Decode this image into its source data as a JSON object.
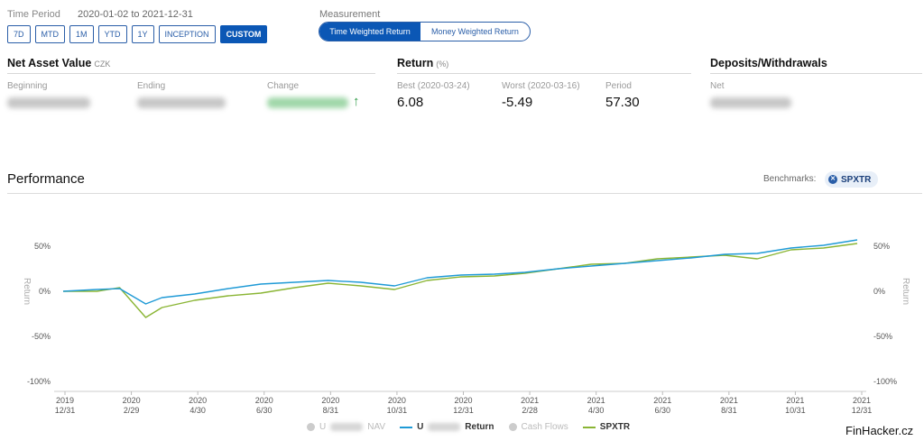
{
  "time_period": {
    "label": "Time Period",
    "range": "2020-01-02 to 2021-12-31",
    "buttons": [
      "7D",
      "MTD",
      "1M",
      "YTD",
      "1Y",
      "INCEPTION",
      "CUSTOM"
    ],
    "active": "CUSTOM"
  },
  "measurement": {
    "label": "Measurement",
    "options": [
      "Time Weighted Return",
      "Money Weighted Return"
    ],
    "active": "Time Weighted Return"
  },
  "nav": {
    "title": "Net Asset Value",
    "unit": "CZK",
    "beginning_label": "Beginning",
    "ending_label": "Ending",
    "change_label": "Change"
  },
  "return": {
    "title": "Return",
    "unit": "(%)",
    "best_label": "Best (2020-03-24)",
    "best_value": "6.08",
    "worst_label": "Worst (2020-03-16)",
    "worst_value": "-5.49",
    "period_label": "Period",
    "period_value": "57.30"
  },
  "deposits": {
    "title": "Deposits/Withdrawals",
    "net_label": "Net"
  },
  "performance": {
    "title": "Performance",
    "benchmarks_label": "Benchmarks:",
    "benchmark": "SPXTR"
  },
  "chart_data": {
    "type": "line",
    "y_ticks": [
      "50%",
      "0%",
      "-50%",
      "-100%"
    ],
    "ylim": [
      -100,
      50
    ],
    "ylabel": "Return",
    "grid": false,
    "x_ticks": [
      {
        "year": "2019",
        "date": "12/31"
      },
      {
        "year": "2020",
        "date": "2/29"
      },
      {
        "year": "2020",
        "date": "4/30"
      },
      {
        "year": "2020",
        "date": "6/30"
      },
      {
        "year": "2020",
        "date": "8/31"
      },
      {
        "year": "2020",
        "date": "10/31"
      },
      {
        "year": "2020",
        "date": "12/31"
      },
      {
        "year": "2021",
        "date": "2/28"
      },
      {
        "year": "2021",
        "date": "4/30"
      },
      {
        "year": "2021",
        "date": "6/30"
      },
      {
        "year": "2021",
        "date": "8/31"
      },
      {
        "year": "2021",
        "date": "10/31"
      },
      {
        "year": "2021",
        "date": "12/31"
      }
    ],
    "x": [
      "2019-12-31",
      "2020-01-31",
      "2020-02-21",
      "2020-03-16",
      "2020-03-31",
      "2020-04-30",
      "2020-05-31",
      "2020-06-30",
      "2020-07-31",
      "2020-08-31",
      "2020-09-30",
      "2020-10-31",
      "2020-11-30",
      "2020-12-31",
      "2021-01-31",
      "2021-02-28",
      "2021-03-31",
      "2021-04-30",
      "2021-05-31",
      "2021-06-30",
      "2021-07-31",
      "2021-08-31",
      "2021-09-30",
      "2021-10-31",
      "2021-11-30",
      "2021-12-31"
    ],
    "series": [
      {
        "name": "Return",
        "color": "#1f9ad6",
        "values": [
          0,
          2,
          3,
          -14,
          -7,
          -3,
          3,
          8,
          10,
          12,
          10,
          6,
          15,
          18,
          19,
          21,
          25,
          28,
          31,
          34,
          37,
          41,
          42,
          48,
          51,
          57
        ]
      },
      {
        "name": "SPXTR",
        "color": "#8ab534",
        "values": [
          0,
          0,
          4,
          -29,
          -18,
          -10,
          -5,
          -2,
          4,
          9,
          6,
          2,
          12,
          16,
          17,
          20,
          25,
          30,
          31,
          36,
          38,
          40,
          36,
          46,
          48,
          53
        ]
      }
    ],
    "legend": [
      {
        "label": "NAV",
        "kind": "dot",
        "active": false
      },
      {
        "label": "Return",
        "kind": "line",
        "color": "#1f9ad6",
        "active": true
      },
      {
        "label": "Cash Flows",
        "kind": "dot",
        "active": false
      },
      {
        "label": "SPXTR",
        "kind": "line",
        "color": "#8ab534",
        "active": true
      }
    ]
  },
  "legend": {
    "nav_prefix": "U",
    "nav_label": "NAV",
    "return_prefix": "U",
    "return_label": "Return",
    "cash_label": "Cash Flows",
    "spx_label": "SPXTR"
  },
  "watermark": "FinHacker.cz"
}
